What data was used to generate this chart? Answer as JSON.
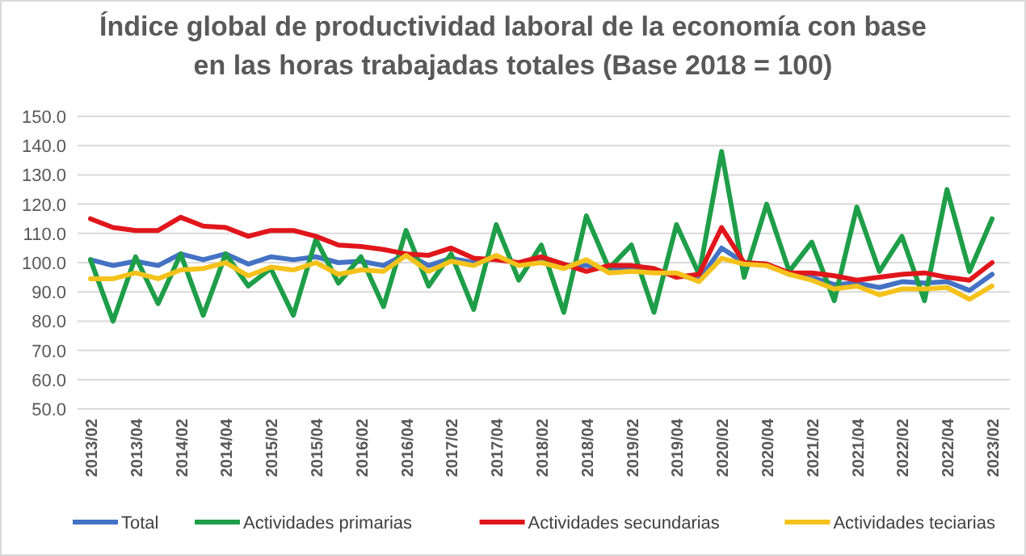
{
  "chart_data": {
    "type": "line",
    "title": "Índice global de productividad laboral de la economía con base en las horas trabajadas totales (Base 2018 = 100)",
    "categories": [
      "2013/02",
      null,
      "2013/04",
      null,
      "2014/02",
      null,
      "2014/04",
      null,
      "2015/02",
      null,
      "2015/04",
      null,
      "2016/02",
      null,
      "2016/04",
      null,
      "2017/02",
      null,
      "2017/04",
      null,
      "2018/02",
      null,
      "2018/04",
      null,
      "2019/02",
      null,
      "2019/04",
      null,
      "2020/02",
      null,
      "2020/04",
      null,
      "2021/02",
      null,
      "2021/04",
      null,
      "2022/02",
      null,
      "2022/04",
      null,
      "2023/02"
    ],
    "series": [
      {
        "name": "Total",
        "color": "#4472c4",
        "values": [
          101,
          99,
          100.5,
          99,
          103,
          101,
          103,
          99.5,
          102,
          101,
          102,
          100,
          100.5,
          99,
          103,
          99,
          101.5,
          100,
          102,
          99.5,
          101,
          99,
          99,
          98,
          98.5,
          97,
          96,
          94,
          105,
          100,
          99.5,
          96,
          95,
          92.5,
          93,
          91.5,
          93.5,
          93,
          93.5,
          90.5,
          96
        ]
      },
      {
        "name": "Actividades primarias",
        "color": "#1e9e48",
        "values": [
          101,
          80,
          102,
          86,
          103,
          82,
          103,
          92,
          98,
          82,
          108,
          93,
          102,
          85,
          111,
          92,
          103,
          84,
          113,
          94,
          106,
          83,
          116,
          98,
          106,
          83,
          113,
          96,
          138,
          95,
          120,
          97,
          107,
          87,
          119,
          97,
          109,
          87,
          125,
          97,
          115
        ]
      },
      {
        "name": "Actividades secundarias",
        "color": "#e0161b",
        "values": [
          115,
          112,
          111,
          111,
          115.5,
          112.5,
          112,
          109,
          111,
          111,
          109,
          106,
          105.5,
          104.5,
          103,
          102.5,
          105,
          101.5,
          101,
          100,
          102,
          99.5,
          97,
          99,
          99,
          98,
          95,
          96,
          112,
          100,
          99.5,
          96.5,
          96.5,
          95.5,
          94,
          95,
          96,
          96.5,
          95,
          94,
          100
        ]
      },
      {
        "name": "Actividades teciarias",
        "color": "#f5c21b",
        "values": [
          94.5,
          94.5,
          96.5,
          94.5,
          97.5,
          98,
          100,
          95.5,
          98.5,
          97.5,
          100,
          96,
          97.5,
          97,
          102.5,
          97,
          100.5,
          99,
          102.5,
          99,
          100,
          98,
          101,
          96.5,
          97,
          96.5,
          96.5,
          93.5,
          101.5,
          99.5,
          99,
          96,
          94,
          91,
          92,
          89,
          91,
          91,
          91.5,
          87.5,
          92
        ]
      }
    ],
    "ylim": [
      50,
      150
    ],
    "yticks": [
      {
        "value": 50,
        "label": "50.0"
      },
      {
        "value": 60,
        "label": "60.0"
      },
      {
        "value": 70,
        "label": "70.0"
      },
      {
        "value": 80,
        "label": "80.0"
      },
      {
        "value": 90,
        "label": "90.0"
      },
      {
        "value": 100,
        "label": "100.0"
      },
      {
        "value": 110,
        "label": "110.0"
      },
      {
        "value": 120,
        "label": "120.0"
      },
      {
        "value": 130,
        "label": "130.0"
      },
      {
        "value": 140,
        "label": "140.0"
      },
      {
        "value": 150,
        "label": "150.0"
      }
    ],
    "grid": "y",
    "legend": "bottom",
    "marker": "none",
    "line_style": "solid"
  }
}
